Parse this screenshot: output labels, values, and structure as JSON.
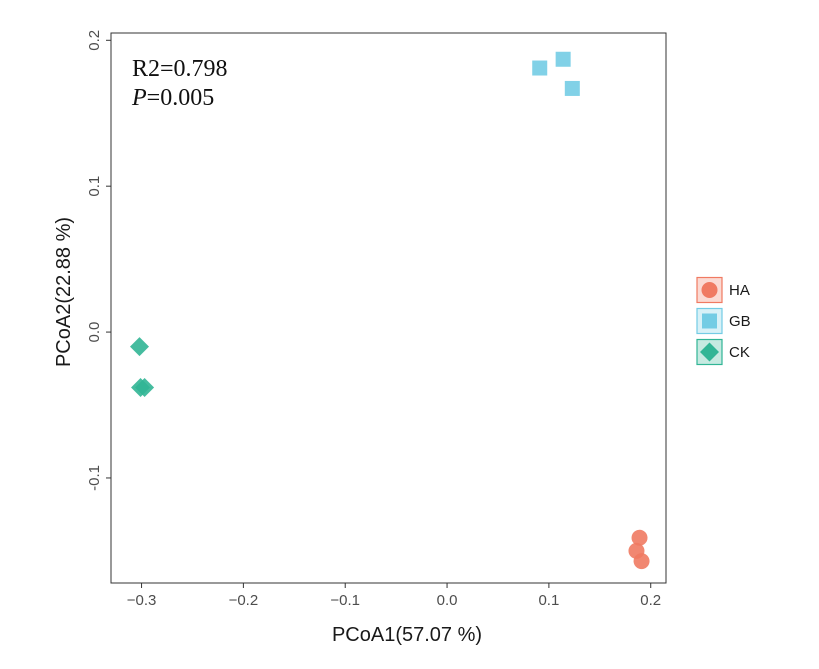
{
  "chart_data": {
    "type": "scatter",
    "title": "",
    "xlabel": "PCoA1(57.07 %)",
    "ylabel": "PCoA2(22.88 %)",
    "xlim": [
      -0.33,
      0.215
    ],
    "ylim": [
      -0.172,
      0.205
    ],
    "x_ticks": [
      -0.3,
      -0.2,
      -0.1,
      0.0,
      0.1,
      0.2
    ],
    "x_tick_labels": [
      "−0.3",
      "−0.2",
      "−0.1",
      "0.0",
      "0.1",
      "0.2"
    ],
    "y_ticks": [
      -0.1,
      0.0,
      0.1,
      0.2
    ],
    "y_tick_labels": [
      "-0.1",
      "0.0",
      "0.1",
      "0.2"
    ],
    "grid": false,
    "legend_position": "right",
    "annotations": {
      "r2": "R2=0.798",
      "p_italic": "P",
      "p_rest": "=0.005"
    },
    "series": [
      {
        "name": "HA",
        "marker": "circle",
        "color": "#f07a62",
        "points": [
          [
            0.189,
            -0.141
          ],
          [
            0.186,
            -0.15
          ],
          [
            0.191,
            -0.157
          ]
        ]
      },
      {
        "name": "GB",
        "marker": "square",
        "color": "#73cce4",
        "points": [
          [
            0.091,
            0.181
          ],
          [
            0.114,
            0.187
          ],
          [
            0.123,
            0.167
          ]
        ]
      },
      {
        "name": "CK",
        "marker": "diamond",
        "color": "#31b595",
        "points": [
          [
            -0.302,
            -0.01
          ],
          [
            -0.301,
            -0.038
          ],
          [
            -0.297,
            -0.038
          ]
        ]
      }
    ]
  }
}
